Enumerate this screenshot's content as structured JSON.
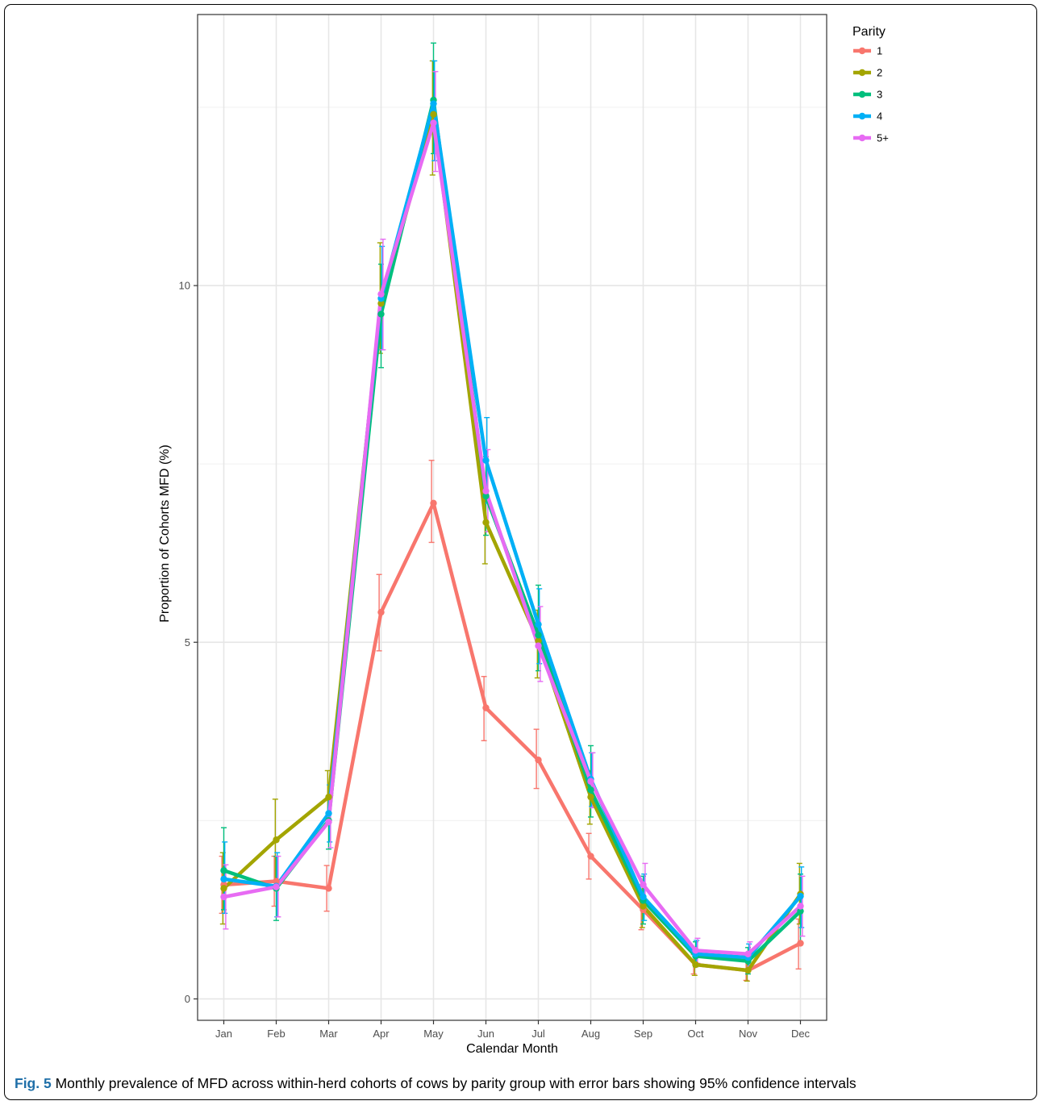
{
  "caption": {
    "label": "Fig. 5",
    "text": "Monthly prevalence of MFD across within-herd cohorts of cows by parity group with error bars showing 95% confidence intervals"
  },
  "chart_data": {
    "type": "line",
    "title": "",
    "xlabel": "Calendar Month",
    "ylabel": "Proportion of Cohorts MFD (%)",
    "categories": [
      "Jan",
      "Feb",
      "Mar",
      "Apr",
      "May",
      "Jun",
      "Jul",
      "Aug",
      "Sep",
      "Oct",
      "Nov",
      "Dec"
    ],
    "ylim": [
      -0.3,
      13.8
    ],
    "yticks": [
      0,
      5,
      10
    ],
    "ytick_labels": [
      "0",
      "5",
      "10"
    ],
    "grid": true,
    "legend": {
      "title": "Parity",
      "position": "right-top"
    },
    "series": [
      {
        "name": "1",
        "color": "#F8766D",
        "values": [
          1.6,
          1.65,
          1.55,
          5.42,
          6.95,
          4.08,
          3.35,
          2.0,
          1.25,
          0.48,
          0.4,
          0.78
        ],
        "lower": [
          1.2,
          1.3,
          1.23,
          4.88,
          6.4,
          3.62,
          2.95,
          1.68,
          0.97,
          0.35,
          0.26,
          0.42
        ],
        "upper": [
          2.0,
          2.0,
          1.87,
          5.95,
          7.55,
          4.52,
          3.78,
          2.32,
          1.5,
          0.62,
          0.55,
          1.12
        ]
      },
      {
        "name": "2",
        "color": "#A3A500",
        "values": [
          1.55,
          2.23,
          2.83,
          9.75,
          12.4,
          6.68,
          5.02,
          2.83,
          1.3,
          0.48,
          0.4,
          1.47
        ],
        "lower": [
          1.05,
          1.65,
          2.45,
          9.05,
          11.55,
          6.1,
          4.5,
          2.45,
          1.0,
          0.33,
          0.25,
          1.05
        ],
        "upper": [
          2.05,
          2.8,
          3.2,
          10.6,
          13.15,
          7.1,
          5.45,
          3.2,
          1.6,
          0.65,
          0.55,
          1.9
        ]
      },
      {
        "name": "3",
        "color": "#00BF7D",
        "values": [
          1.8,
          1.55,
          2.5,
          9.6,
          12.6,
          7.05,
          5.1,
          2.93,
          1.38,
          0.6,
          0.53,
          1.23
        ],
        "lower": [
          1.25,
          1.1,
          2.1,
          8.85,
          11.85,
          6.5,
          4.6,
          2.55,
          1.05,
          0.45,
          0.35,
          0.8
        ],
        "upper": [
          2.4,
          2.0,
          2.85,
          10.3,
          13.4,
          7.6,
          5.8,
          3.55,
          1.72,
          0.8,
          0.72,
          1.75
        ]
      },
      {
        "name": "4",
        "color": "#00B0F6",
        "values": [
          1.68,
          1.58,
          2.6,
          9.82,
          12.55,
          7.55,
          5.25,
          3.08,
          1.43,
          0.63,
          0.58,
          1.44
        ],
        "lower": [
          1.2,
          1.15,
          2.2,
          9.1,
          11.75,
          6.95,
          4.7,
          2.7,
          1.1,
          0.48,
          0.42,
          1.0
        ],
        "upper": [
          2.2,
          2.05,
          3.0,
          10.55,
          13.15,
          8.15,
          5.75,
          3.45,
          1.75,
          0.82,
          0.77,
          1.85
        ]
      },
      {
        "name": "5+",
        "color": "#E76BF3",
        "values": [
          1.43,
          1.57,
          2.48,
          9.88,
          12.28,
          7.12,
          4.95,
          3.05,
          1.6,
          0.68,
          0.63,
          1.3
        ],
        "lower": [
          0.98,
          1.15,
          2.12,
          9.1,
          11.6,
          6.55,
          4.45,
          2.68,
          1.3,
          0.5,
          0.46,
          0.88
        ],
        "upper": [
          1.88,
          2.0,
          2.85,
          10.65,
          13.0,
          7.7,
          5.5,
          3.45,
          1.9,
          0.85,
          0.8,
          1.72
        ]
      }
    ]
  }
}
